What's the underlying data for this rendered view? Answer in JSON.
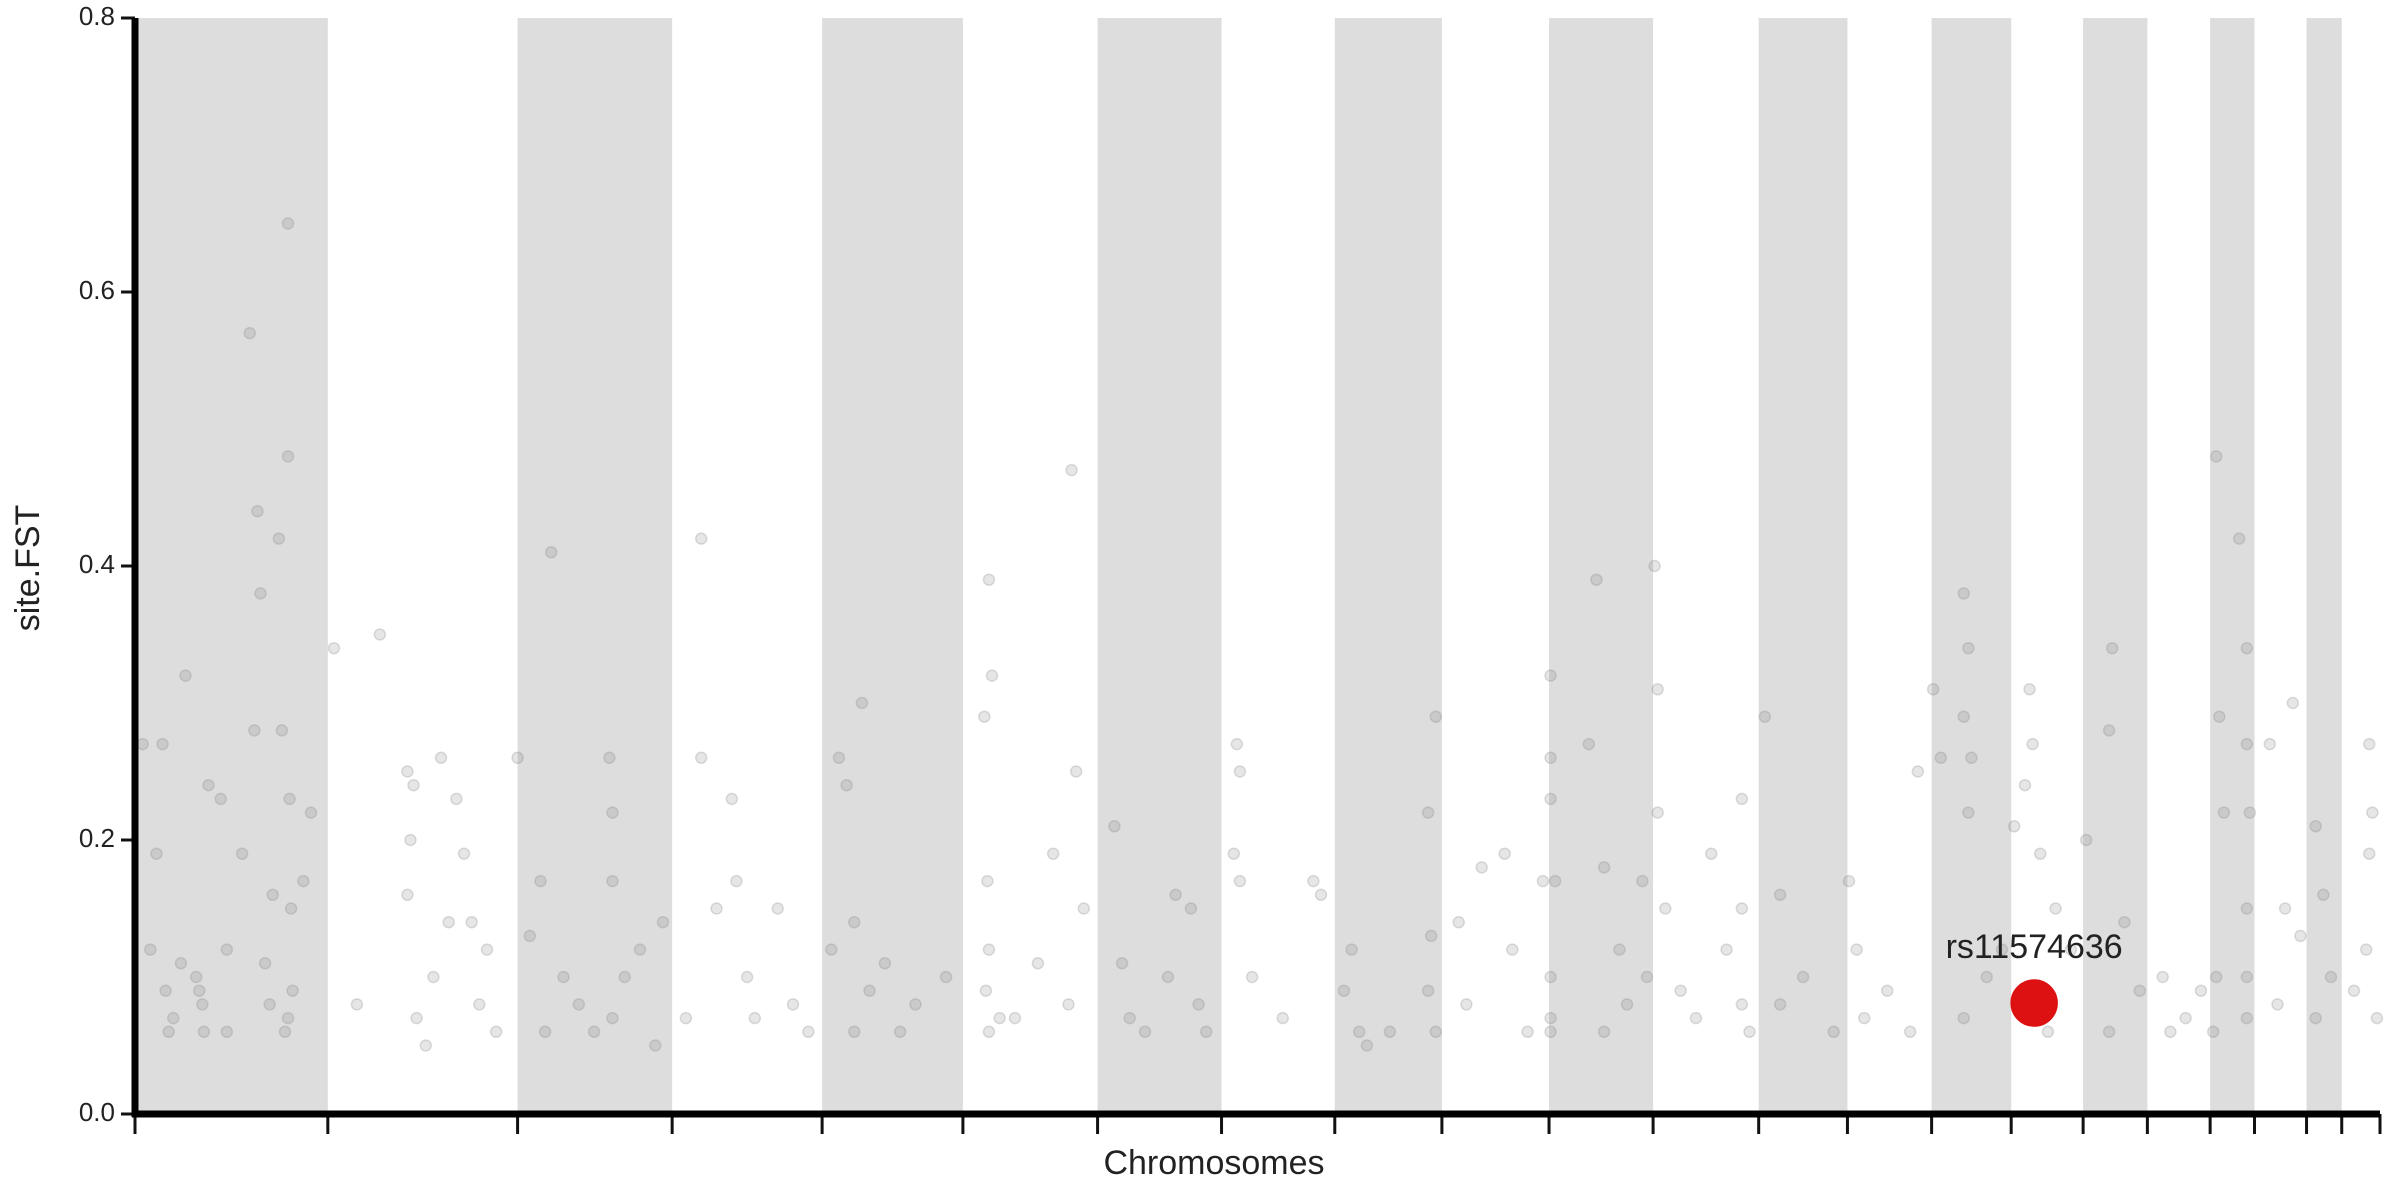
{
  "chart_data": {
    "type": "scatter",
    "x_label": "Chromosomes",
    "y_label": "site.FST",
    "xlim": [
      0,
      1467
    ],
    "ylim": [
      0,
      0.8
    ],
    "yticks": [
      {
        "value": 0,
        "label": "0.0"
      },
      0.2,
      0.4,
      0.6,
      0.8
    ],
    "xticks": [
      0,
      126,
      250,
      351,
      449,
      541,
      629,
      710,
      784,
      854,
      924,
      992,
      1061,
      1119,
      1174,
      1226,
      1273,
      1315,
      1356,
      1385,
      1419,
      1442,
      1467
    ],
    "band_color": "#dddddd",
    "series": [
      {
        "color": "#808080",
        "x": [
          5,
          10,
          14,
          18,
          20,
          25,
          30,
          33,
          40,
          44,
          48,
          56,
          60,
          75,
          78,
          80,
          82,
          85,
          90,
          94,
          96,
          100,
          100,
          101,
          102,
          100,
          103,
          110,
          115,
          45,
          60,
          70,
          88,
          98,
          42,
          22,
          130,
          145,
          160,
          178,
          180,
          182,
          184,
          190,
          200,
          205,
          210,
          215,
          220,
          225,
          230,
          236,
          178,
          195,
          250,
          258,
          265,
          272,
          280,
          290,
          300,
          310,
          312,
          312,
          312,
          320,
          330,
          340,
          345,
          268,
          370,
          370,
          380,
          390,
          393,
          400,
          405,
          420,
          430,
          440,
          360,
          460,
          465,
          470,
          475,
          480,
          490,
          500,
          510,
          530,
          455,
          470,
          555,
          558,
          560,
          557,
          558,
          558,
          556,
          565,
          575,
          590,
          600,
          612,
          615,
          620,
          610,
          640,
          645,
          650,
          660,
          675,
          690,
          695,
          700,
          680,
          720,
          722,
          722,
          718,
          730,
          750,
          770,
          775,
          790,
          795,
          800,
          805,
          820,
          845,
          850,
          850,
          845,
          847,
          865,
          870,
          880,
          895,
          900,
          910,
          920,
          925,
          925,
          925,
          928,
          925,
          925,
          925,
          950,
          955,
          960,
          970,
          975,
          985,
          988,
          960,
          993,
          995,
          995,
          1000,
          1010,
          1020,
          1030,
          1050,
          1050,
          1050,
          1055,
          1040,
          1065,
          1075,
          1075,
          1090,
          1110,
          1120,
          1125,
          1130,
          1145,
          1160,
          1165,
          1175,
          1180,
          1195,
          1198,
          1195,
          1200,
          1198,
          1195,
          1210,
          1220,
          1228,
          1235,
          1238,
          1240,
          1245,
          1255,
          1265,
          1250,
          1275,
          1290,
          1292,
          1300,
          1310,
          1290,
          1325,
          1340,
          1350,
          1330,
          1360,
          1362,
          1365,
          1375,
          1380,
          1380,
          1382,
          1380,
          1380,
          1380,
          1360,
          1358,
          1395,
          1410,
          1405,
          1400,
          1415,
          1425,
          1430,
          1425,
          1435,
          1460,
          1462,
          1460,
          1458,
          1465,
          1450
        ],
        "values": [
          0.27,
          0.12,
          0.19,
          0.27,
          0.09,
          0.07,
          0.11,
          0.32,
          0.1,
          0.08,
          0.24,
          0.23,
          0.06,
          0.57,
          0.28,
          0.44,
          0.38,
          0.11,
          0.16,
          0.42,
          0.28,
          0.65,
          0.48,
          0.23,
          0.15,
          0.07,
          0.09,
          0.17,
          0.22,
          0.06,
          0.12,
          0.19,
          0.08,
          0.06,
          0.09,
          0.06,
          0.34,
          0.08,
          0.35,
          0.25,
          0.2,
          0.24,
          0.07,
          0.05,
          0.26,
          0.14,
          0.23,
          0.19,
          0.14,
          0.08,
          0.12,
          0.06,
          0.16,
          0.1,
          0.26,
          0.13,
          0.17,
          0.41,
          0.1,
          0.08,
          0.06,
          0.26,
          0.22,
          0.17,
          0.07,
          0.1,
          0.12,
          0.05,
          0.14,
          0.06,
          0.42,
          0.26,
          0.15,
          0.23,
          0.17,
          0.1,
          0.07,
          0.15,
          0.08,
          0.06,
          0.07,
          0.26,
          0.24,
          0.14,
          0.3,
          0.09,
          0.11,
          0.06,
          0.08,
          0.1,
          0.12,
          0.06,
          0.29,
          0.39,
          0.32,
          0.17,
          0.12,
          0.06,
          0.09,
          0.07,
          0.07,
          0.11,
          0.19,
          0.47,
          0.25,
          0.15,
          0.08,
          0.21,
          0.11,
          0.07,
          0.06,
          0.1,
          0.15,
          0.08,
          0.06,
          0.16,
          0.27,
          0.25,
          0.17,
          0.19,
          0.1,
          0.07,
          0.17,
          0.16,
          0.09,
          0.12,
          0.06,
          0.05,
          0.06,
          0.09,
          0.06,
          0.29,
          0.22,
          0.13,
          0.14,
          0.08,
          0.18,
          0.19,
          0.12,
          0.06,
          0.17,
          0.32,
          0.26,
          0.23,
          0.17,
          0.1,
          0.07,
          0.06,
          0.27,
          0.39,
          0.18,
          0.12,
          0.08,
          0.17,
          0.1,
          0.06,
          0.4,
          0.31,
          0.22,
          0.15,
          0.09,
          0.07,
          0.19,
          0.23,
          0.15,
          0.08,
          0.06,
          0.12,
          0.29,
          0.16,
          0.08,
          0.1,
          0.06,
          0.17,
          0.12,
          0.07,
          0.09,
          0.06,
          0.25,
          0.31,
          0.26,
          0.38,
          0.34,
          0.29,
          0.26,
          0.22,
          0.07,
          0.1,
          0.12,
          0.21,
          0.24,
          0.31,
          0.27,
          0.19,
          0.15,
          0.12,
          0.06,
          0.2,
          0.28,
          0.34,
          0.14,
          0.09,
          0.06,
          0.1,
          0.07,
          0.09,
          0.06,
          0.48,
          0.29,
          0.22,
          0.42,
          0.34,
          0.27,
          0.22,
          0.15,
          0.1,
          0.07,
          0.1,
          0.06,
          0.27,
          0.3,
          0.15,
          0.08,
          0.13,
          0.21,
          0.16,
          0.07,
          0.1,
          0.27,
          0.22,
          0.19,
          0.12,
          0.07,
          0.09
        ]
      },
      {
        "name": "rs11574636",
        "color": "#dd1111",
        "x": [
          1241
        ],
        "values": [
          0.081
        ]
      }
    ]
  }
}
